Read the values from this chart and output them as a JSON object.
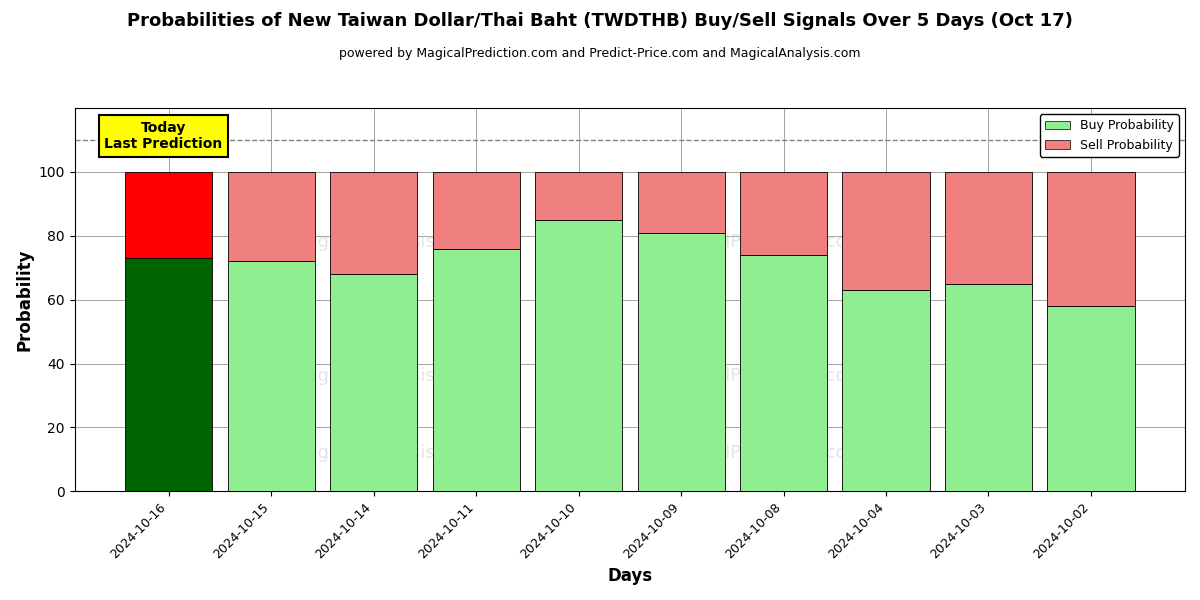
{
  "title": "Probabilities of New Taiwan Dollar/Thai Baht (TWDTHB) Buy/Sell Signals Over 5 Days (Oct 17)",
  "subtitle": "powered by MagicalPrediction.com and Predict-Price.com and MagicalAnalysis.com",
  "xlabel": "Days",
  "ylabel": "Probability",
  "categories": [
    "2024-10-16",
    "2024-10-15",
    "2024-10-14",
    "2024-10-11",
    "2024-10-10",
    "2024-10-09",
    "2024-10-08",
    "2024-10-04",
    "2024-10-03",
    "2024-10-02"
  ],
  "buy_values": [
    73,
    72,
    68,
    76,
    85,
    81,
    74,
    63,
    65,
    58
  ],
  "sell_values": [
    27,
    28,
    32,
    24,
    15,
    19,
    26,
    37,
    35,
    42
  ],
  "today_buy_color": "#006400",
  "today_sell_color": "#FF0000",
  "buy_color": "#90EE90",
  "sell_color": "#F08080",
  "today_annotation_bg": "#FFFF00",
  "today_annotation_text": "Today\nLast Prediction",
  "legend_buy_label": "Buy Probability",
  "legend_sell_label": "Sell Probability",
  "ylim": [
    0,
    120
  ],
  "yticks": [
    0,
    20,
    40,
    60,
    80,
    100
  ],
  "dashed_line_y": 110,
  "bar_width": 0.85,
  "figsize": [
    12,
    6
  ],
  "dpi": 100
}
